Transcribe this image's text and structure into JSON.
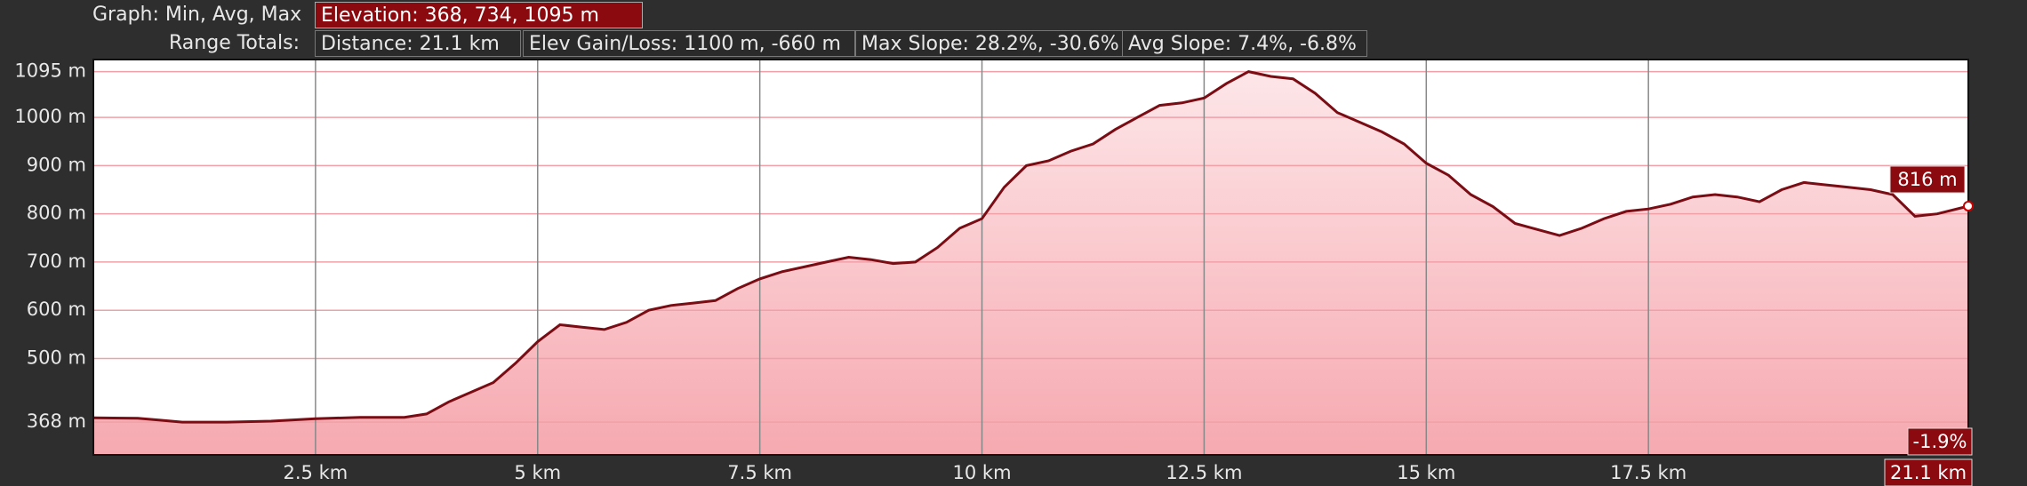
{
  "chart_data": {
    "type": "area",
    "header": {
      "graph_label": "Graph: Min, Avg, Max",
      "elevation": "Elevation: 368, 734, 1095 m",
      "range_label": "Range Totals:",
      "distance": "Distance: 21.1 km",
      "gain_loss": "Elev Gain/Loss: 1100 m, -660 m",
      "max_slope": "Max Slope: 28.2%, -30.6%",
      "avg_slope": "Avg Slope: 7.4%, -6.8%"
    },
    "x": [
      0,
      0.5,
      0.75,
      1,
      1.5,
      2,
      2.5,
      3,
      3.5,
      3.75,
      4,
      4.5,
      4.75,
      5,
      5.25,
      5.5,
      5.75,
      6,
      6.25,
      6.5,
      6.75,
      7,
      7.25,
      7.5,
      7.75,
      8,
      8.25,
      8.5,
      8.75,
      9,
      9.25,
      9.5,
      9.75,
      10,
      10.25,
      10.5,
      10.75,
      11,
      11.25,
      11.5,
      11.75,
      12,
      12.25,
      12.5,
      12.75,
      13,
      13.25,
      13.5,
      13.75,
      14,
      14.25,
      14.5,
      14.75,
      15,
      15.25,
      15.5,
      15.75,
      16,
      16.5,
      16.75,
      17,
      17.25,
      17.5,
      17.75,
      18,
      18.25,
      18.5,
      18.75,
      19,
      19.25,
      19.5,
      19.75,
      20,
      20.25,
      20.5,
      20.75,
      21.1
    ],
    "series": [
      {
        "color": "#7a0c14",
        "fill": "#f6a9b0",
        "values": [
          377,
          376,
          372,
          368,
          368,
          370,
          375,
          378,
          378,
          385,
          410,
          450,
          490,
          535,
          570,
          565,
          560,
          575,
          600,
          610,
          615,
          620,
          645,
          665,
          680,
          690,
          700,
          710,
          705,
          697,
          700,
          730,
          770,
          790,
          855,
          900,
          910,
          930,
          945,
          975,
          1000,
          1025,
          1030,
          1040,
          1070,
          1095,
          1085,
          1080,
          1050,
          1010,
          990,
          970,
          945,
          905,
          880,
          840,
          815,
          780,
          755,
          770,
          790,
          805,
          810,
          820,
          835,
          840,
          835,
          825,
          850,
          865,
          860,
          855,
          850,
          840,
          795,
          800,
          816
        ]
      }
    ],
    "xlim": [
      0,
      21.1
    ],
    "ylim": [
      300,
      1120
    ],
    "xticks": [
      {
        "value": 2.5,
        "label": "2.5 km"
      },
      {
        "value": 5,
        "label": "5 km"
      },
      {
        "value": 7.5,
        "label": "7.5 km"
      },
      {
        "value": 10,
        "label": "10 km"
      },
      {
        "value": 12.5,
        "label": "12.5 km"
      },
      {
        "value": 15,
        "label": "15 km"
      },
      {
        "value": 17.5,
        "label": "17.5 km"
      }
    ],
    "yticks": [
      {
        "value": 368,
        "label": "368 m"
      },
      {
        "value": 500,
        "label": "500 m"
      },
      {
        "value": 600,
        "label": "600 m"
      },
      {
        "value": 700,
        "label": "700 m"
      },
      {
        "value": 800,
        "label": "800 m"
      },
      {
        "value": 900,
        "label": "900 m"
      },
      {
        "value": 1000,
        "label": "1000 m"
      },
      {
        "value": 1095,
        "label": "1095 m"
      }
    ],
    "grid": true,
    "cursor": {
      "elevation_label": "816 m",
      "slope_label": "-1.9%",
      "distance_label": "21.1 km"
    }
  }
}
